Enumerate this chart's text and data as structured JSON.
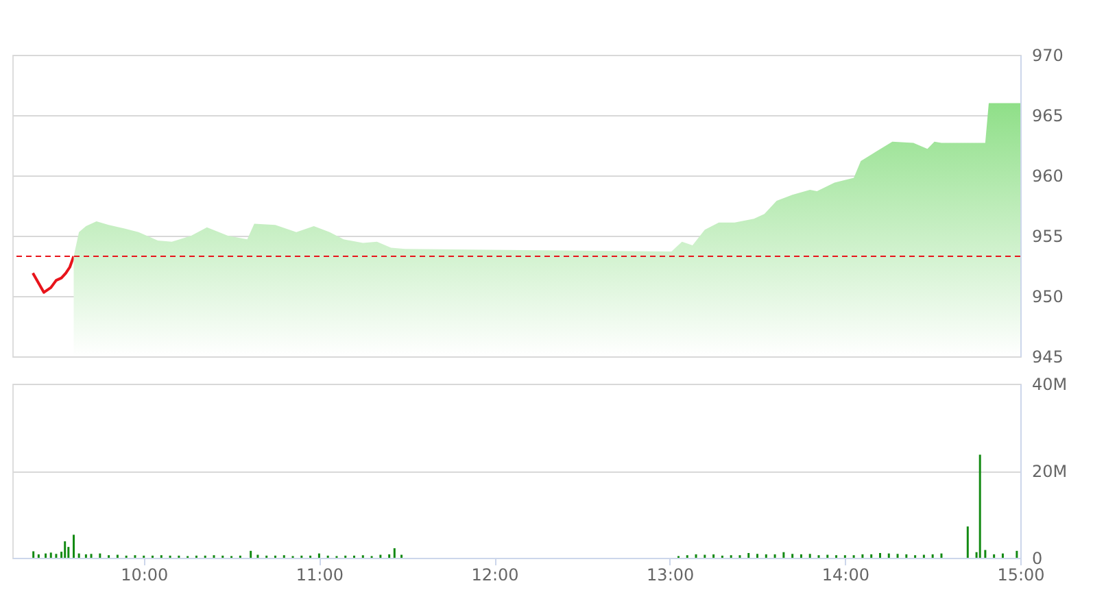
{
  "chart_data": [
    {
      "type": "area",
      "xlim": [
        9.25,
        15.0
      ],
      "ylim": [
        945,
        970
      ],
      "yticks": [
        945,
        950,
        955,
        960,
        965,
        970
      ],
      "grid": "y",
      "tick_labels": "y",
      "ref_lines": [
        {
          "axis": "y",
          "value": 953.3,
          "color": "#e8141b",
          "line_style": "dashed"
        }
      ],
      "series": [
        {
          "type": "line",
          "color": "#e8141b",
          "x": [
            9.367,
            9.43,
            9.47,
            9.5,
            9.53,
            9.555,
            9.578,
            9.6
          ],
          "values": [
            951.9,
            950.3,
            950.7,
            951.3,
            951.5,
            951.9,
            952.4,
            953.3
          ]
        },
        {
          "type": "area",
          "color": "#8fdf88",
          "x": [
            9.6,
            9.63,
            9.67,
            9.73,
            9.8,
            9.89,
            9.97,
            10.08,
            10.16,
            10.27,
            10.36,
            10.48,
            10.59,
            10.63,
            10.75,
            10.87,
            10.97,
            11.06,
            11.14,
            11.25,
            11.33,
            11.41,
            11.49,
            13.01,
            13.07,
            13.13,
            13.2,
            13.28,
            13.37,
            13.48,
            13.54,
            13.61,
            13.7,
            13.8,
            13.84,
            13.94,
            14.05,
            14.09,
            14.18,
            14.27,
            14.39,
            14.47,
            14.51,
            14.55,
            14.8,
            14.82,
            15.0
          ],
          "values": [
            953.3,
            955.3,
            955.8,
            956.2,
            955.9,
            955.6,
            955.3,
            954.6,
            954.5,
            955.0,
            955.7,
            955.0,
            954.7,
            956.0,
            955.9,
            955.3,
            955.8,
            955.3,
            954.7,
            954.4,
            954.5,
            954.0,
            953.9,
            953.7,
            954.5,
            954.2,
            955.5,
            956.1,
            956.1,
            956.4,
            956.8,
            957.9,
            958.4,
            958.8,
            958.7,
            959.4,
            959.8,
            961.2,
            962.0,
            962.8,
            962.7,
            962.2,
            962.8,
            962.7,
            962.7,
            966.0,
            966.0
          ]
        }
      ]
    },
    {
      "type": "bar",
      "xlim": [
        9.25,
        15.0
      ],
      "xticks": [
        {
          "value": 10,
          "label": "10:00"
        },
        {
          "value": 11,
          "label": "11:00"
        },
        {
          "value": 12,
          "label": "12:00"
        },
        {
          "value": 13,
          "label": "13:00"
        },
        {
          "value": 14,
          "label": "14:00"
        },
        {
          "value": 15,
          "label": "15:00"
        }
      ],
      "ylim": [
        0,
        40
      ],
      "yticks": [
        {
          "value": 0,
          "label": "0"
        },
        {
          "value": 20,
          "label": "20M"
        },
        {
          "value": 40,
          "label": "40M"
        }
      ],
      "grid": "y",
      "series": [
        {
          "color": "#138a13",
          "x": [
            9.37,
            9.4,
            9.44,
            9.47,
            9.5,
            9.53,
            9.55,
            9.57,
            9.6,
            9.63,
            9.67,
            9.7,
            9.75,
            9.8,
            9.85,
            9.9,
            9.95,
            10.0,
            10.05,
            10.1,
            10.15,
            10.2,
            10.25,
            10.3,
            10.35,
            10.4,
            10.45,
            10.5,
            10.55,
            10.61,
            10.65,
            10.7,
            10.75,
            10.8,
            10.85,
            10.9,
            10.95,
            11.0,
            11.05,
            11.1,
            11.15,
            11.2,
            11.25,
            11.3,
            11.35,
            11.4,
            11.43,
            11.47,
            13.05,
            13.1,
            13.15,
            13.2,
            13.25,
            13.3,
            13.35,
            13.4,
            13.45,
            13.5,
            13.55,
            13.6,
            13.65,
            13.7,
            13.75,
            13.8,
            13.85,
            13.9,
            13.95,
            14.0,
            14.05,
            14.1,
            14.15,
            14.2,
            14.25,
            14.3,
            14.35,
            14.4,
            14.45,
            14.5,
            14.55,
            14.7,
            14.75,
            14.77,
            14.8,
            14.85,
            14.9,
            14.98
          ],
          "values": [
            1.5,
            0.8,
            1.0,
            1.2,
            0.9,
            1.4,
            3.8,
            2.5,
            5.3,
            1.0,
            0.8,
            0.9,
            1.0,
            0.6,
            0.7,
            0.5,
            0.6,
            0.5,
            0.5,
            0.6,
            0.5,
            0.5,
            0.4,
            0.5,
            0.5,
            0.6,
            0.5,
            0.4,
            0.5,
            1.6,
            0.7,
            0.5,
            0.5,
            0.6,
            0.4,
            0.5,
            0.5,
            1.0,
            0.5,
            0.4,
            0.5,
            0.5,
            0.6,
            0.4,
            0.7,
            0.8,
            2.2,
            0.7,
            0.4,
            0.6,
            0.8,
            0.7,
            0.8,
            0.5,
            0.6,
            0.6,
            1.1,
            0.9,
            0.8,
            0.8,
            1.3,
            0.9,
            0.8,
            0.9,
            0.6,
            0.7,
            0.6,
            0.6,
            0.6,
            0.8,
            0.8,
            1.1,
            1.0,
            0.9,
            0.8,
            0.6,
            0.7,
            0.8,
            1.0,
            7.2,
            1.3,
            23.7,
            1.8,
            0.8,
            1.0,
            1.6
          ]
        }
      ]
    }
  ]
}
